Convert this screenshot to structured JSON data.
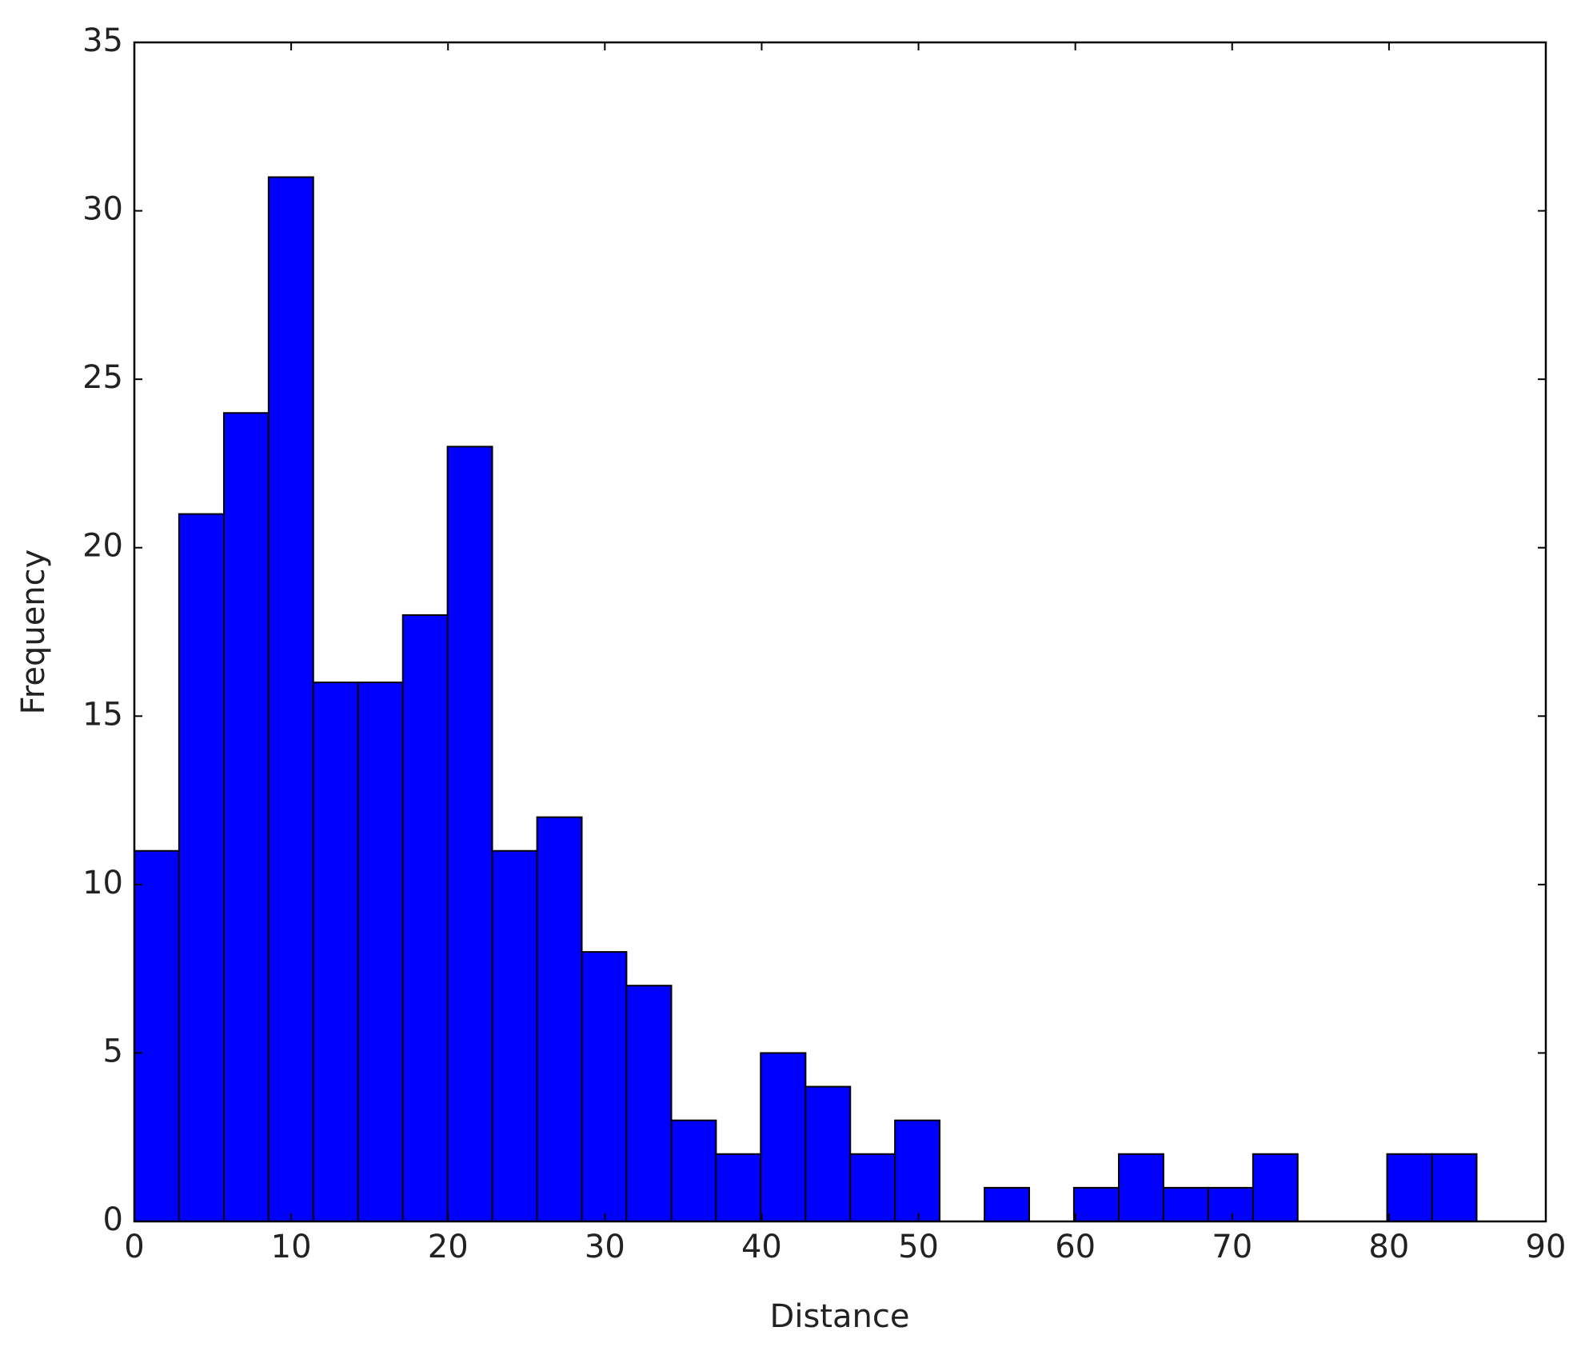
{
  "chart_data": {
    "type": "histogram",
    "xlabel": "Distance",
    "ylabel": "Frequency",
    "bins": [
      0,
      2.85,
      5.71,
      8.56,
      11.41,
      14.27,
      17.12,
      19.97,
      22.82,
      25.68,
      28.53,
      31.38,
      34.24,
      37.09,
      39.94,
      42.8,
      45.65,
      48.5,
      51.35,
      54.21,
      57.06,
      59.91,
      62.77,
      65.62,
      68.47,
      71.33,
      74.18,
      77.03,
      79.88,
      82.74,
      85.59
    ],
    "counts": [
      11,
      21,
      24,
      31,
      16,
      16,
      18,
      23,
      11,
      12,
      8,
      7,
      3,
      2,
      5,
      4,
      2,
      3,
      0,
      1,
      0,
      1,
      2,
      1,
      1,
      2,
      0,
      0,
      2,
      2
    ],
    "color": "#0000ff",
    "xlim": [
      0,
      90
    ],
    "xticks": [
      0,
      10,
      20,
      30,
      40,
      50,
      60,
      70,
      80,
      90
    ],
    "ylim": [
      0,
      35
    ],
    "yticks": [
      0,
      5,
      10,
      15,
      20,
      25,
      30,
      35
    ]
  }
}
